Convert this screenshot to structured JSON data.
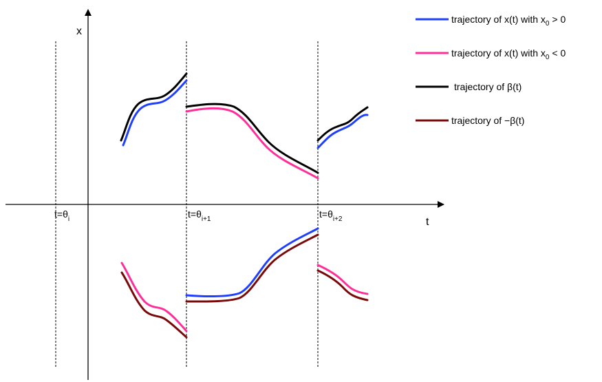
{
  "axes": {
    "y_label": "x",
    "x_label": "t"
  },
  "markers": [
    {
      "name": "theta-i",
      "prefix": "t=θ",
      "sub": "i"
    },
    {
      "name": "theta-i1",
      "prefix": "t=θ",
      "sub": "i+1"
    },
    {
      "name": "theta-i2",
      "prefix": "t=θ",
      "sub": "i+2"
    }
  ],
  "legend": [
    {
      "name": "x-pos",
      "color": "#1f3fff",
      "text_a": "trajectory of x(t) with x",
      "sub": "0",
      "text_b": " > 0"
    },
    {
      "name": "x-neg",
      "color": "#ff2f9a",
      "text_a": "trajectory of x(t) with x",
      "sub": "0",
      "text_b": " < 0"
    },
    {
      "name": "beta",
      "color": "#000000",
      "text_a": "trajectory of β(t)",
      "sub": "",
      "text_b": ""
    },
    {
      "name": "neg-beta",
      "color": "#7a0a0a",
      "text_a": "trajectory of −β(t)",
      "sub": "",
      "text_b": ""
    }
  ],
  "colors": {
    "x_pos": "#1f3fff",
    "x_neg": "#ff2f9a",
    "beta": "#000000",
    "neg_beta": "#7a0a0a"
  }
}
